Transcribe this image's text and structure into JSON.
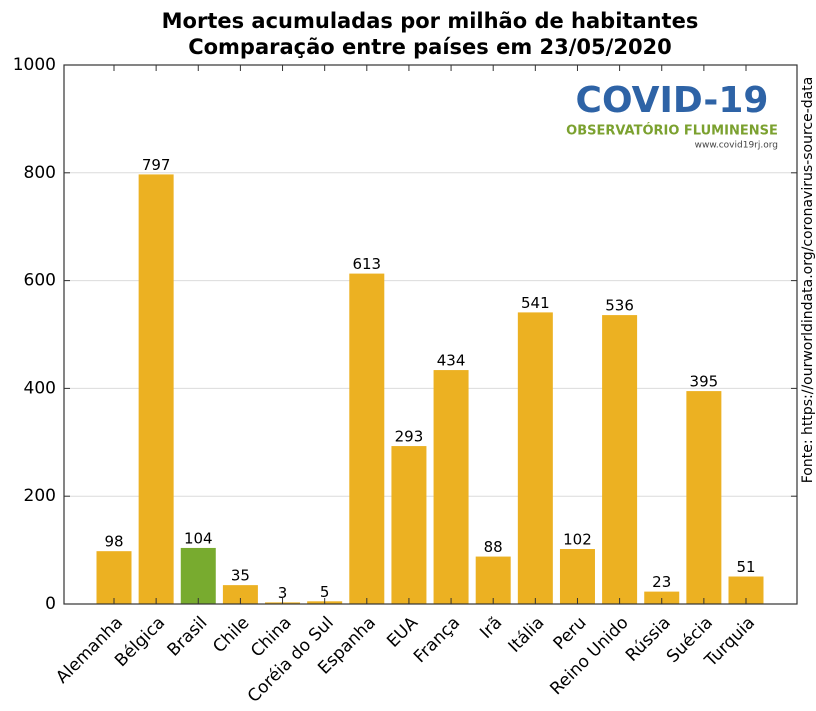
{
  "chart_data": {
    "type": "bar",
    "title": [
      "Mortes acumuladas por milhão de habitantes",
      "Comparação entre países em 23/05/2020"
    ],
    "categories": [
      "Alemanha",
      "Bélgica",
      "Brasil",
      "Chile",
      "China",
      "Coréia do Sul",
      "Espanha",
      "EUA",
      "França",
      "Irã",
      "Itália",
      "Peru",
      "Reino Unido",
      "Rússia",
      "Suécia",
      "Turquia"
    ],
    "values": [
      98,
      797,
      104,
      35,
      3,
      5,
      613,
      293,
      434,
      88,
      541,
      102,
      536,
      23,
      395,
      51
    ],
    "colors": [
      "#ecb122",
      "#ecb122",
      "#78ab2f",
      "#ecb122",
      "#ecb122",
      "#ecb122",
      "#ecb122",
      "#ecb122",
      "#ecb122",
      "#ecb122",
      "#ecb122",
      "#ecb122",
      "#ecb122",
      "#ecb122",
      "#ecb122",
      "#ecb122"
    ],
    "ylim": [
      0,
      1000
    ],
    "yticks": [
      0,
      200,
      400,
      600,
      800,
      1000
    ],
    "grid": true,
    "source": "Fonte: https://ourworldindata.org/coronavirus-source-data"
  },
  "logo": {
    "title": "COVID-19",
    "subtitle": "OBSERVATÓRIO FLUMINENSE",
    "url": "www.covid19rj.org"
  }
}
